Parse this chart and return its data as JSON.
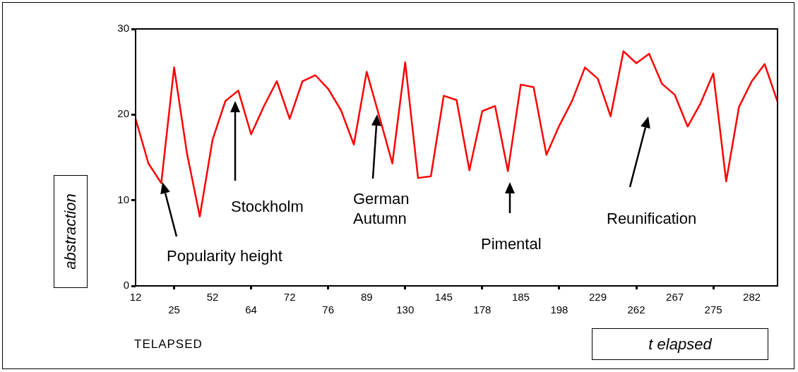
{
  "chart_data": {
    "type": "line",
    "xlabel": "TELAPSED",
    "ylabel": "abstraction",
    "categories": [
      "12",
      null,
      null,
      "25",
      null,
      null,
      "52",
      null,
      null,
      "64",
      null,
      null,
      "72",
      null,
      null,
      "76",
      null,
      null,
      "89",
      null,
      null,
      "130",
      null,
      null,
      "145",
      null,
      null,
      "178",
      null,
      null,
      "185",
      null,
      null,
      "198",
      null,
      null,
      "229",
      null,
      null,
      "262",
      null,
      null,
      "267",
      null,
      null,
      "275",
      null,
      null,
      "282",
      null,
      null
    ],
    "series": [
      {
        "color": "#ff0000",
        "values": [
          19.5,
          14.3,
          12.0,
          25.5,
          15.5,
          8.1,
          17.1,
          21.6,
          22.8,
          17.7,
          21.0,
          23.9,
          19.5,
          23.9,
          24.6,
          23.0,
          20.5,
          16.5,
          25.0,
          19.7,
          14.3,
          26.1,
          12.6,
          12.8,
          22.2,
          21.7,
          13.5,
          20.4,
          21.0,
          13.4,
          23.5,
          23.2,
          15.3,
          18.7,
          21.6,
          25.5,
          24.2,
          19.8,
          27.4,
          26.0,
          27.1,
          23.6,
          22.3,
          18.6,
          21.3,
          24.8,
          12.2,
          20.9,
          23.9,
          25.9,
          21.5
        ]
      }
    ],
    "ylim": [
      0,
      30
    ],
    "yticks": [
      0,
      10,
      20,
      30
    ],
    "grid": false,
    "legend": false,
    "marker": "none",
    "line_style": "solid",
    "annotations": [
      "Popularity height",
      "Stockholm",
      "German Autumn",
      "Pimental",
      "Reunification",
      "t elapsed"
    ]
  }
}
